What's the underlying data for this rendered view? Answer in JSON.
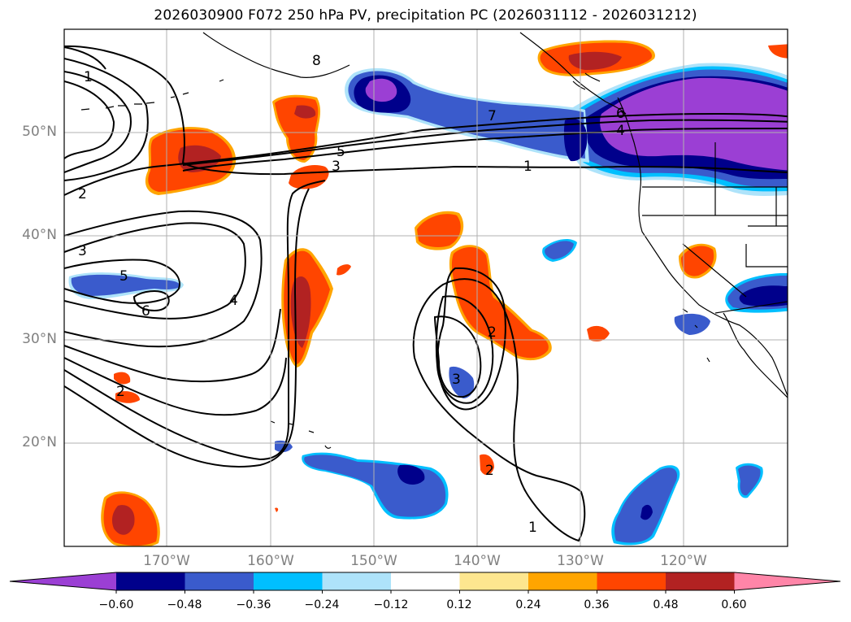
{
  "title": "2026030900 F072 250 hPa PV, precipitation PC (2026031112 - 2026031212)",
  "map": {
    "lat_labels": [
      "50°N",
      "40°N",
      "30°N",
      "20°N"
    ],
    "lon_labels": [
      "170°W",
      "160°W",
      "150°W",
      "140°W",
      "130°W",
      "120°W"
    ],
    "contour_labels": [
      "1",
      "2",
      "3",
      "5",
      "6",
      "4",
      "5",
      "3",
      "7",
      "6",
      "4",
      "1",
      "2",
      "3",
      "2",
      "1",
      "2",
      "8"
    ]
  },
  "colorbar": {
    "ticks": [
      "−0.60",
      "−0.48",
      "−0.36",
      "−0.24",
      "−0.12",
      "0.12",
      "0.24",
      "0.36",
      "0.48",
      "0.60"
    ],
    "colors": [
      "#9b3fd4",
      "#00008b",
      "#3a5bcc",
      "#00bfff",
      "#aee3fa",
      "#ffffff",
      "#fde68f",
      "#ffa500",
      "#ff4500",
      "#b22222",
      "#ff85a8"
    ]
  }
}
